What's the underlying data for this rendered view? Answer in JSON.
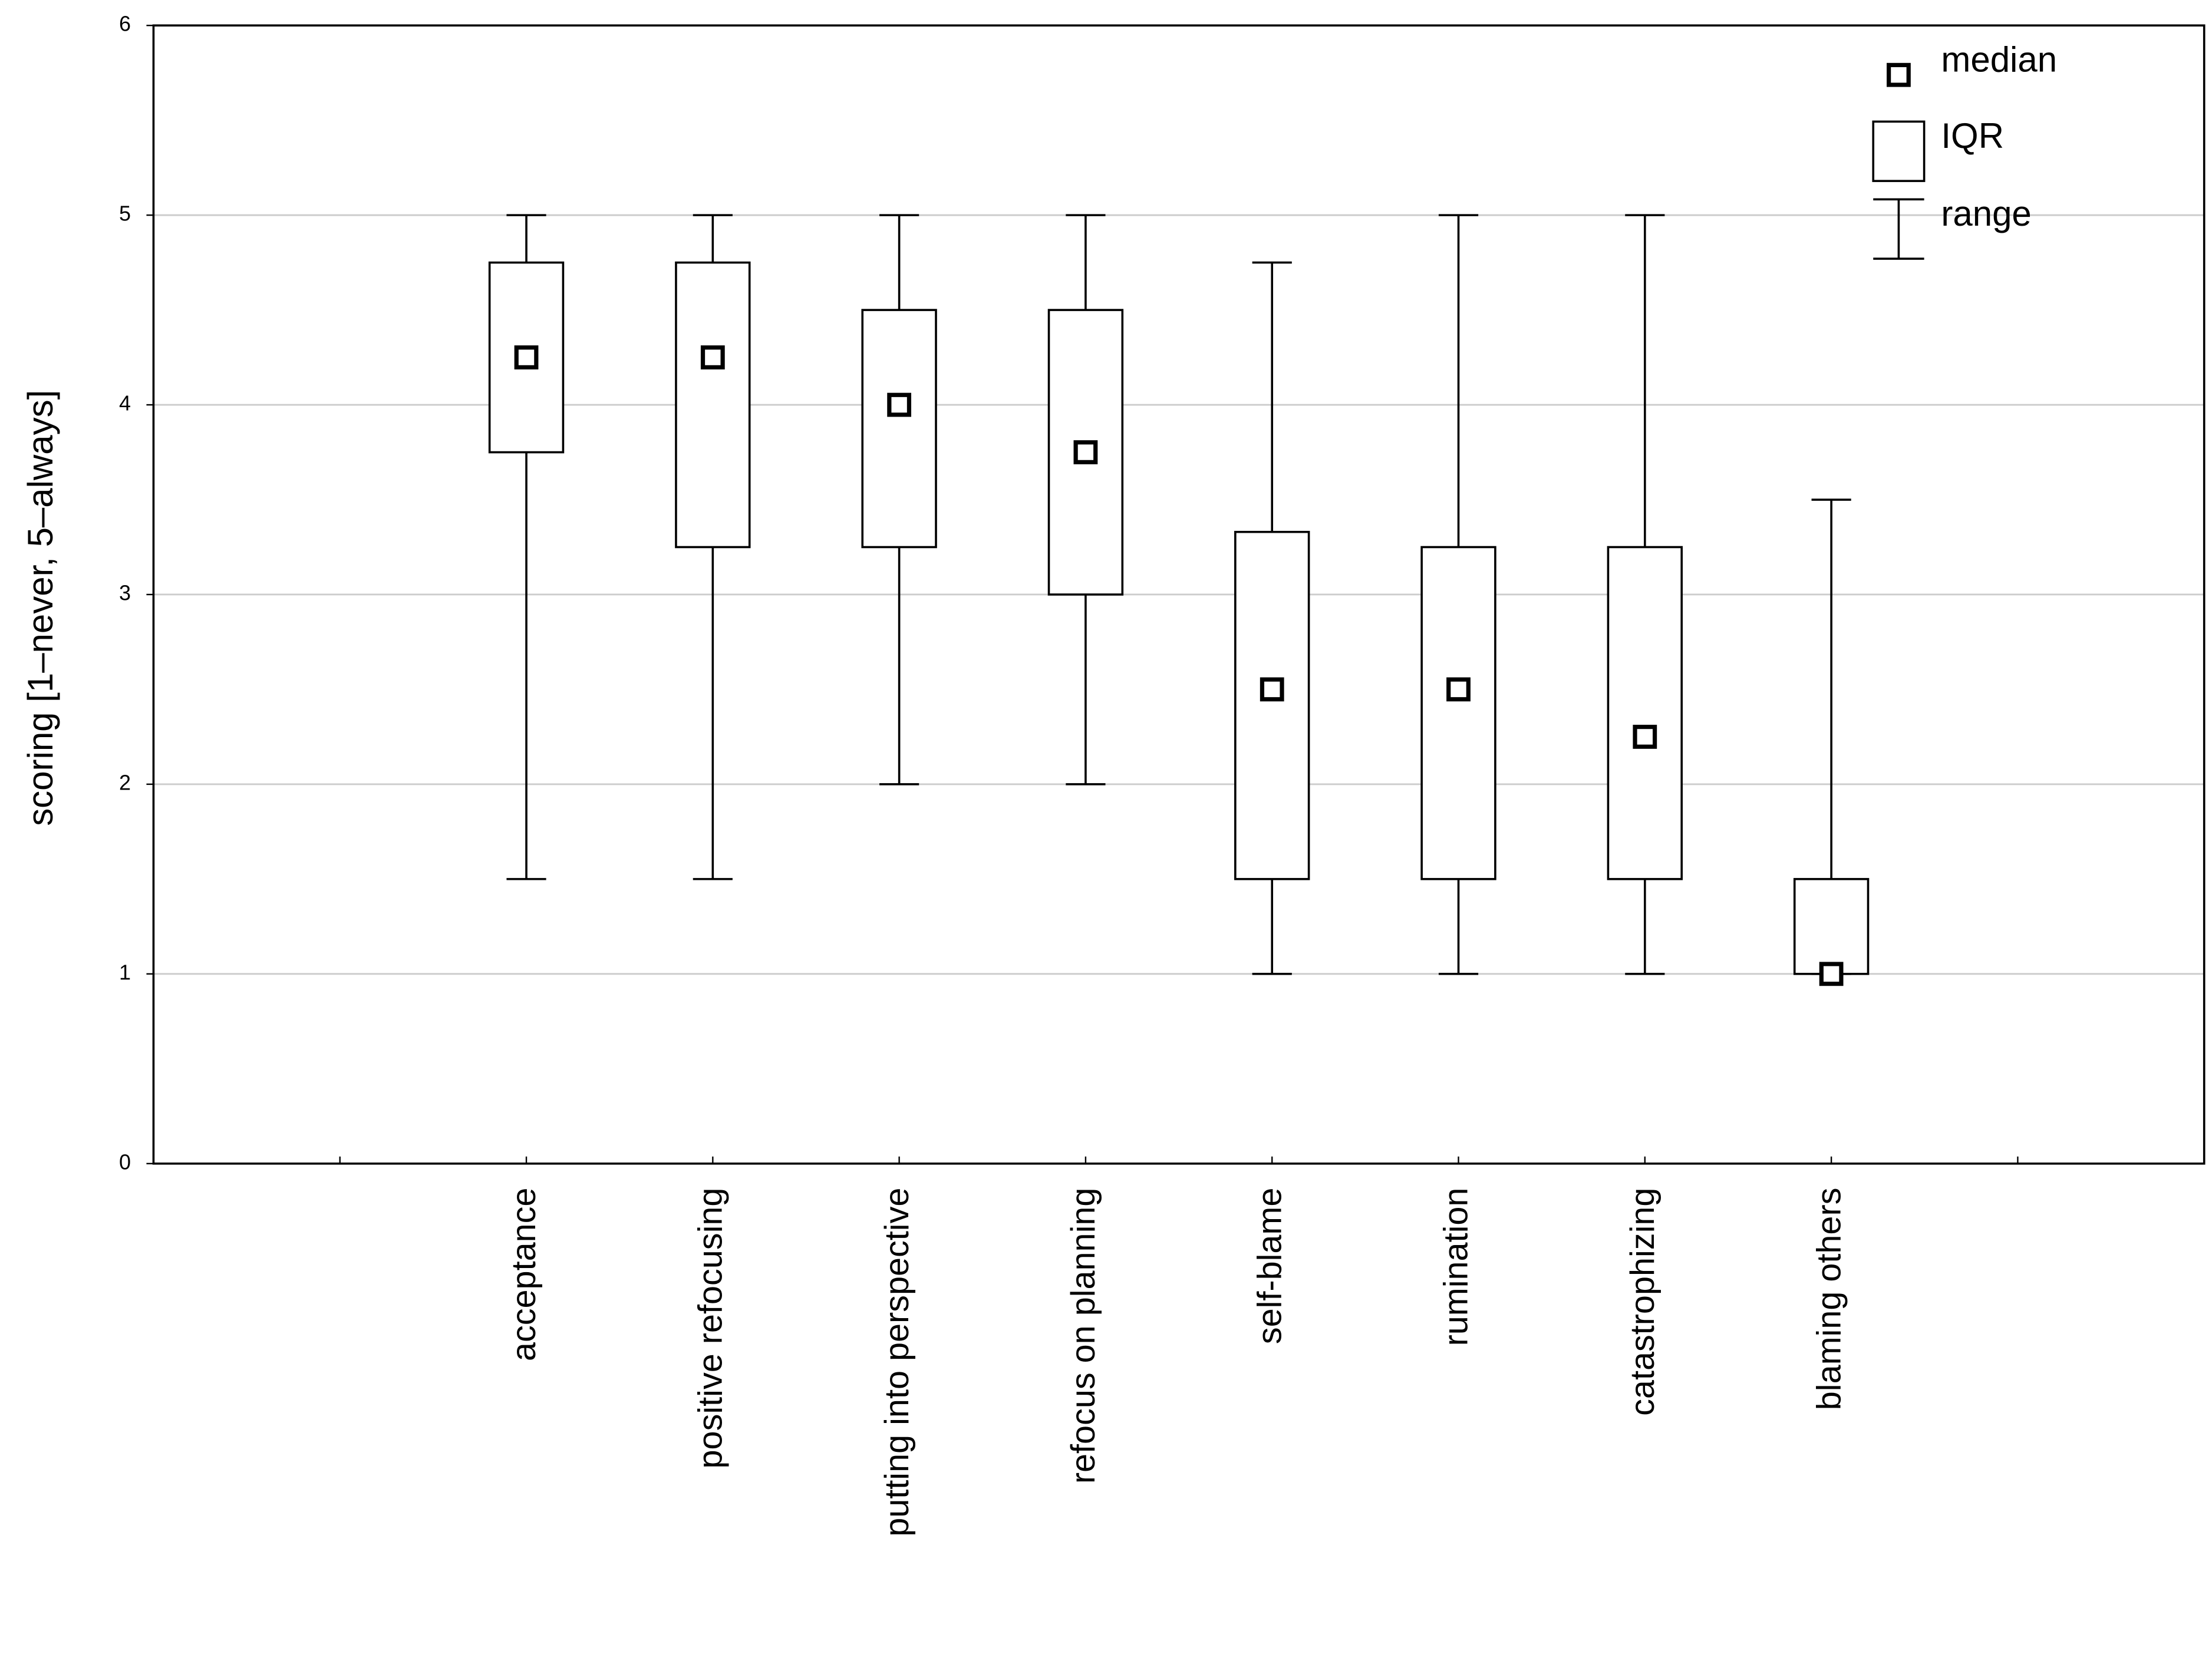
{
  "chart_data": {
    "type": "box",
    "y_label": "scoring [1–never, 5–always]",
    "categories": [
      null,
      "acceptance",
      "positive refocusing",
      "putting into perspective",
      "refocus on planning",
      "self-blame",
      "rumination",
      "catastrophizing",
      "blaming others",
      null
    ],
    "min": [
      null,
      1.5,
      1.5,
      2,
      2,
      1,
      1,
      1,
      1,
      null
    ],
    "q1": [
      null,
      3.75,
      3.25,
      3.25,
      3,
      1.5,
      1.5,
      1.5,
      1,
      null
    ],
    "median": [
      null,
      4.25,
      4.25,
      4,
      3.75,
      2.5,
      2.5,
      2.25,
      1,
      null
    ],
    "q3": [
      null,
      4.75,
      4.75,
      4.5,
      4.5,
      3.33,
      3.25,
      3.25,
      1.5,
      null
    ],
    "max": [
      null,
      5,
      5,
      5,
      5,
      4.75,
      5,
      5,
      3.5,
      null
    ],
    "legend": [
      "median",
      "IQR",
      "range"
    ],
    "legend_position": "upper right",
    "color": "#000000",
    "grid": true,
    "ylim": [
      0,
      6
    ],
    "yticks": [
      0,
      1,
      2,
      3,
      4,
      5,
      6
    ]
  }
}
